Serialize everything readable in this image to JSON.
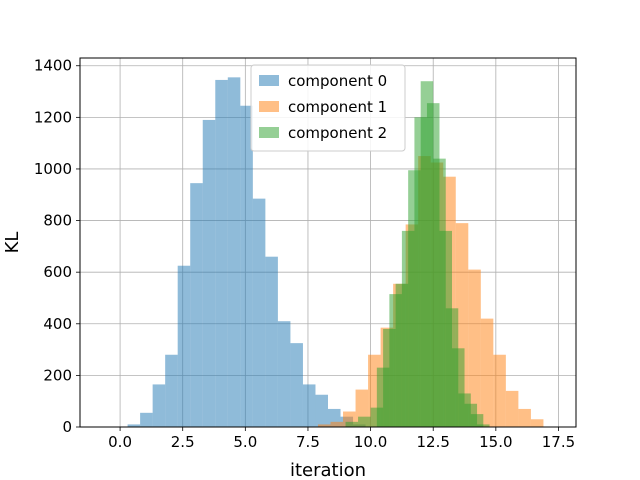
{
  "chart_data": {
    "type": "histogram",
    "xlabel": "iteration",
    "ylabel": "KL",
    "xlim": [
      -1.6,
      18.2
    ],
    "ylim": [
      0,
      1430
    ],
    "grid": true,
    "legend_position": "top-center",
    "x_ticks": [
      0.0,
      2.5,
      5.0,
      7.5,
      10.0,
      12.5,
      15.0,
      17.5
    ],
    "x_tick_labels": [
      "0.0",
      "2.5",
      "5.0",
      "7.5",
      "10.0",
      "12.5",
      "15.0",
      "17.5"
    ],
    "y_ticks": [
      0,
      200,
      400,
      600,
      800,
      1000,
      1200,
      1400
    ],
    "y_tick_labels": [
      "0",
      "200",
      "400",
      "600",
      "800",
      "1000",
      "1200",
      "1400"
    ],
    "bin_width": 0.5,
    "series": [
      {
        "name": "component 0",
        "color": "#1f77b4",
        "opacity": 0.5,
        "bin_starts": [
          0.3,
          0.8,
          1.3,
          1.8,
          2.3,
          2.8,
          3.3,
          3.8,
          4.3,
          4.8,
          5.3,
          5.8,
          6.3,
          6.8,
          7.3,
          7.8,
          8.3,
          8.8,
          9.3
        ],
        "counts": [
          10,
          55,
          165,
          280,
          625,
          945,
          1190,
          1345,
          1355,
          1245,
          885,
          660,
          410,
          325,
          165,
          125,
          70,
          40,
          10
        ]
      },
      {
        "name": "component 1",
        "color": "#ff7f0e",
        "opacity": 0.5,
        "bin_starts": [
          7.9,
          8.4,
          8.9,
          9.4,
          9.9,
          10.4,
          10.9,
          11.4,
          11.9,
          12.4,
          12.9,
          13.4,
          13.9,
          14.4,
          14.9,
          15.4,
          15.9,
          16.4
        ],
        "counts": [
          10,
          20,
          60,
          145,
          280,
          385,
          555,
          785,
          1050,
          1025,
          970,
          790,
          610,
          420,
          280,
          140,
          70,
          30
        ]
      },
      {
        "name": "component 2",
        "color": "#2ca02c",
        "opacity": 0.5,
        "bin_starts": [
          9.0,
          9.5,
          10.0,
          10.25,
          10.5,
          10.75,
          11.0,
          11.25,
          11.5,
          11.75,
          12.0,
          12.25,
          12.5,
          12.75,
          13.0,
          13.25,
          13.5,
          13.75,
          14.0,
          14.25
        ],
        "counts": [
          20,
          40,
          75,
          230,
          380,
          515,
          555,
          760,
          995,
          1200,
          1340,
          1255,
          1040,
          760,
          460,
          305,
          130,
          90,
          50,
          10
        ]
      }
    ]
  }
}
